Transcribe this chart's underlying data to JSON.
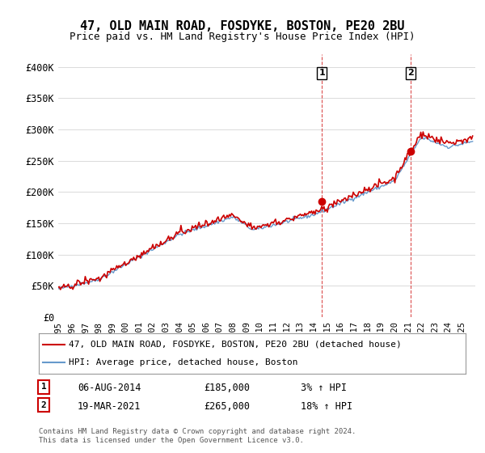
{
  "title": "47, OLD MAIN ROAD, FOSDYKE, BOSTON, PE20 2BU",
  "subtitle": "Price paid vs. HM Land Registry's House Price Index (HPI)",
  "ylabel_ticks": [
    "£0",
    "£50K",
    "£100K",
    "£150K",
    "£200K",
    "£250K",
    "£300K",
    "£350K",
    "£400K"
  ],
  "ytick_values": [
    0,
    50000,
    100000,
    150000,
    200000,
    250000,
    300000,
    350000,
    400000
  ],
  "ylim": [
    0,
    420000
  ],
  "xlim_start": 1995.0,
  "xlim_end": 2026.0,
  "hpi_color": "#6699cc",
  "price_color": "#cc0000",
  "sale1_date": "06-AUG-2014",
  "sale1_price": 185000,
  "sale1_pct": "3%",
  "sale2_date": "19-MAR-2021",
  "sale2_price": 265000,
  "sale2_pct": "18%",
  "sale1_x": 2014.6,
  "sale2_x": 2021.2,
  "legend_label1": "47, OLD MAIN ROAD, FOSDYKE, BOSTON, PE20 2BU (detached house)",
  "legend_label2": "HPI: Average price, detached house, Boston",
  "footnote": "Contains HM Land Registry data © Crown copyright and database right 2024.\nThis data is licensed under the Open Government Licence v3.0.",
  "background_color": "#ffffff",
  "grid_color": "#cccccc"
}
